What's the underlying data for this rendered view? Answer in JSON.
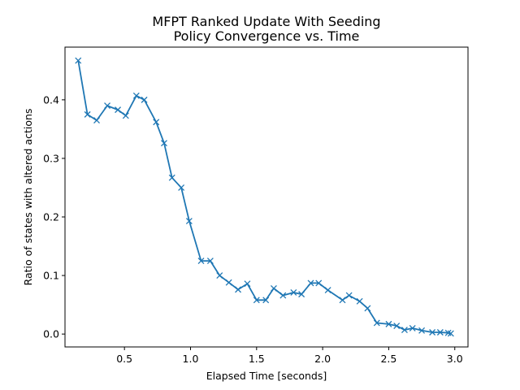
{
  "chart_data": {
    "type": "line",
    "title_lines": [
      "MFPT Ranked Update With Seeding",
      "Policy Convergence vs. Time"
    ],
    "xlabel": "Elapsed Time [seconds]",
    "ylabel": "Ratio of states with altered actions",
    "xlim": [
      0.05,
      3.1
    ],
    "ylim": [
      -0.022,
      0.49
    ],
    "xticks": [
      0.5,
      1.0,
      1.5,
      2.0,
      2.5,
      3.0
    ],
    "xtick_labels": [
      "0.5",
      "1.0",
      "1.5",
      "2.0",
      "2.5",
      "3.0"
    ],
    "yticks": [
      0.0,
      0.1,
      0.2,
      0.3,
      0.4
    ],
    "ytick_labels": [
      "0.0",
      "0.1",
      "0.2",
      "0.3",
      "0.4"
    ],
    "grid": false,
    "legend": "none",
    "marker": "x",
    "line_color": "#1f77b4",
    "series": [
      {
        "x": [
          0.15,
          0.22,
          0.29,
          0.37,
          0.45,
          0.51,
          0.59,
          0.65,
          0.74,
          0.8,
          0.86,
          0.93,
          0.99,
          1.08,
          1.15,
          1.22,
          1.29,
          1.36,
          1.43,
          1.5,
          1.57,
          1.63,
          1.7,
          1.78,
          1.84,
          1.91,
          1.97,
          2.04,
          2.15,
          2.2,
          2.28,
          2.34,
          2.41,
          2.5,
          2.56,
          2.62,
          2.68,
          2.75,
          2.83,
          2.89,
          2.95,
          2.97
        ],
        "y": [
          0.467,
          0.375,
          0.365,
          0.39,
          0.383,
          0.373,
          0.407,
          0.4,
          0.362,
          0.326,
          0.267,
          0.25,
          0.193,
          0.125,
          0.125,
          0.1,
          0.088,
          0.076,
          0.086,
          0.058,
          0.058,
          0.078,
          0.066,
          0.071,
          0.068,
          0.087,
          0.087,
          0.075,
          0.058,
          0.066,
          0.056,
          0.044,
          0.019,
          0.017,
          0.014,
          0.007,
          0.01,
          0.006,
          0.003,
          0.003,
          0.002,
          0.001
        ]
      }
    ]
  }
}
